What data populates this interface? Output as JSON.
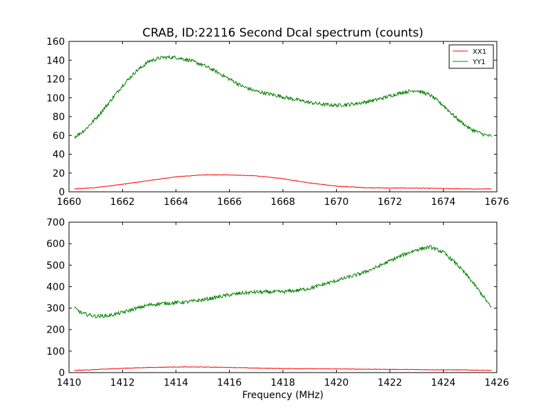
{
  "title": "CRAB, ID:22116 Second Dcal spectrum (counts)",
  "colors": {
    "XX1": "#ff0000",
    "YY1": "#008000"
  },
  "chart_data": [
    {
      "type": "line",
      "xlim": [
        1660,
        1676
      ],
      "ylim": [
        0,
        160
      ],
      "xticks": [
        1660,
        1662,
        1664,
        1666,
        1668,
        1670,
        1672,
        1674,
        1676
      ],
      "yticks": [
        0,
        20,
        40,
        60,
        80,
        100,
        120,
        140,
        160
      ],
      "xlabel": "",
      "legend": {
        "position": "top-right",
        "entries": [
          "XX1",
          "YY1"
        ]
      },
      "series": [
        {
          "name": "XX1",
          "x": [
            1660.2,
            1661,
            1662,
            1663,
            1664,
            1665,
            1666,
            1667,
            1668,
            1669,
            1670,
            1671,
            1672,
            1673,
            1674,
            1675,
            1675.8
          ],
          "y": [
            3,
            4.5,
            8,
            12,
            16,
            18,
            18,
            17,
            14,
            9.5,
            6,
            4.5,
            4,
            4,
            3.5,
            3,
            3
          ]
        },
        {
          "name": "YY1",
          "x": [
            1660.2,
            1660.6,
            1661,
            1661.5,
            1662,
            1662.5,
            1663,
            1663.5,
            1664,
            1664.5,
            1665,
            1665.5,
            1666,
            1666.5,
            1667,
            1667.5,
            1668,
            1668.5,
            1669,
            1669.5,
            1670,
            1670.5,
            1671,
            1671.5,
            1672,
            1672.5,
            1673,
            1673.5,
            1674,
            1674.5,
            1675,
            1675.5,
            1675.8
          ],
          "y": [
            58,
            66,
            78,
            95,
            113,
            128,
            139,
            143,
            143,
            140,
            135,
            128,
            120,
            112,
            107,
            104,
            101,
            98,
            95,
            93,
            92,
            93,
            95,
            98,
            102,
            106,
            108,
            103,
            92,
            78,
            67,
            61,
            59
          ]
        }
      ]
    },
    {
      "type": "line",
      "xlim": [
        1410,
        1426
      ],
      "ylim": [
        0,
        700
      ],
      "xticks": [
        1410,
        1412,
        1414,
        1416,
        1418,
        1420,
        1422,
        1424,
        1426
      ],
      "yticks": [
        0,
        100,
        200,
        300,
        400,
        500,
        600,
        700
      ],
      "xlabel": "Frequency (MHz)",
      "series": [
        {
          "name": "XX1",
          "x": [
            1410.2,
            1411,
            1412,
            1413,
            1414,
            1415,
            1416,
            1417,
            1418,
            1419,
            1420,
            1421,
            1422,
            1423,
            1424,
            1425,
            1425.8
          ],
          "y": [
            10,
            14,
            20,
            24,
            26,
            26,
            24,
            21,
            19,
            18,
            17,
            16,
            15,
            14,
            13,
            12,
            10
          ]
        },
        {
          "name": "YY1",
          "x": [
            1410.2,
            1410.5,
            1411,
            1411.5,
            1412,
            1412.5,
            1413,
            1413.5,
            1414,
            1414.5,
            1415,
            1415.5,
            1416,
            1416.5,
            1417,
            1417.5,
            1418,
            1418.5,
            1419,
            1419.5,
            1420,
            1420.5,
            1421,
            1421.5,
            1422,
            1422.5,
            1423,
            1423.5,
            1424,
            1424.5,
            1425,
            1425.5,
            1425.8
          ],
          "y": [
            300,
            275,
            262,
            265,
            280,
            298,
            315,
            322,
            325,
            330,
            338,
            350,
            362,
            370,
            375,
            375,
            376,
            382,
            392,
            410,
            428,
            446,
            465,
            490,
            520,
            548,
            572,
            585,
            560,
            505,
            435,
            355,
            300
          ]
        }
      ]
    }
  ]
}
